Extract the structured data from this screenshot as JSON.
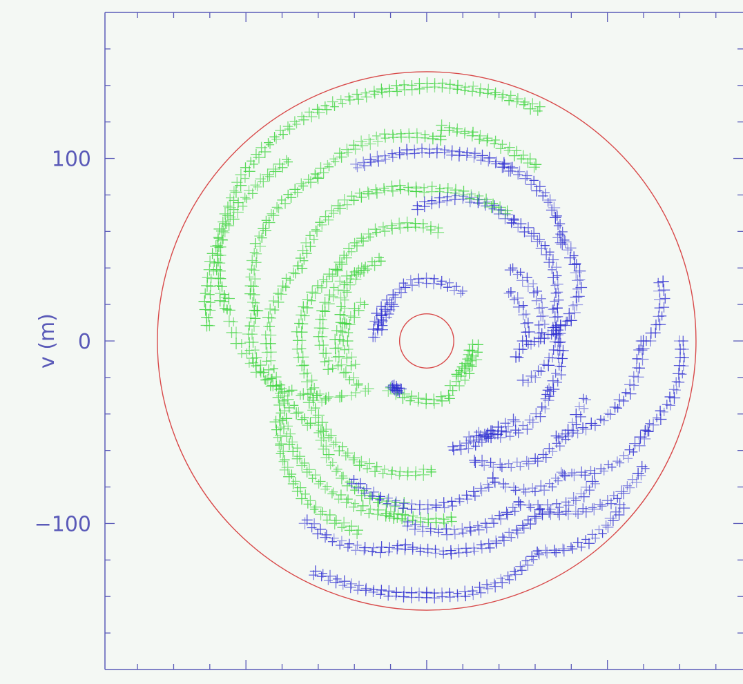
{
  "chart_data": {
    "type": "scatter",
    "title": "",
    "xlabel": "",
    "ylabel": "v (m)",
    "xlim": [
      -178,
      175
    ],
    "ylim": [
      -180,
      180
    ],
    "yticks_labeled": [
      {
        "value": 100,
        "label": "100"
      },
      {
        "value": 0,
        "label": "0"
      },
      {
        "value": -100,
        "label": "−100"
      }
    ],
    "grid": false,
    "legend": "none",
    "marker": "+",
    "colors": {
      "axis": "#5a5ab8",
      "background": "#f4f8f4",
      "circles": "#d84848",
      "series_green": "#3fd43f",
      "series_blue": "#2a2ad0"
    },
    "circles": [
      {
        "center": [
          0,
          0
        ],
        "radius": 149
      },
      {
        "center": [
          0,
          0
        ],
        "radius": 15
      }
    ],
    "arc_tracks": [
      {
        "series": "green",
        "r0": 140,
        "a0": 64,
        "r1": 138,
        "a1": 102,
        "bend": 0
      },
      {
        "series": "green",
        "r0": 138,
        "a0": 104,
        "r1": 112,
        "a1": 171,
        "bend": 10
      },
      {
        "series": "green",
        "r0": 112,
        "a0": 168,
        "r1": 42,
        "a1": 219,
        "bend": 12
      },
      {
        "series": "green",
        "r0": 124,
        "a0": 128,
        "r1": 120,
        "a1": 176,
        "bend": 4
      },
      {
        "series": "green",
        "r0": 112,
        "a0": 58,
        "r1": 116,
        "a1": 86,
        "bend": 0
      },
      {
        "series": "green",
        "r0": 110,
        "a0": 86,
        "r1": 108,
        "a1": 124,
        "bend": 4
      },
      {
        "series": "green",
        "r0": 108,
        "a0": 124,
        "r1": 95,
        "a1": 170,
        "bend": 6
      },
      {
        "series": "green",
        "r0": 95,
        "a0": 170,
        "r1": 88,
        "a1": 196,
        "bend": 4
      },
      {
        "series": "green",
        "r0": 82,
        "a0": 58,
        "r1": 82,
        "a1": 94,
        "bend": 0
      },
      {
        "series": "green",
        "r0": 82,
        "a0": 94,
        "r1": 80,
        "a1": 150,
        "bend": 6
      },
      {
        "series": "green",
        "r0": 80,
        "a0": 150,
        "r1": 78,
        "a1": 215,
        "bend": 8
      },
      {
        "series": "green",
        "r0": 60,
        "a0": 84,
        "r1": 62,
        "a1": 142,
        "bend": 4
      },
      {
        "series": "green",
        "r0": 62,
        "a0": 142,
        "r1": 65,
        "a1": 210,
        "bend": 6
      },
      {
        "series": "green",
        "r0": 50,
        "a0": 120,
        "r1": 46,
        "a1": 168,
        "bend": 4
      },
      {
        "series": "green",
        "r0": 46,
        "a0": 168,
        "r1": 44,
        "a1": 212,
        "bend": 4
      },
      {
        "series": "green",
        "r0": 52,
        "a0": 132,
        "r1": 54,
        "a1": 196,
        "bend": 5
      },
      {
        "series": "green",
        "r0": 40,
        "a0": 150,
        "r1": 42,
        "a1": 198,
        "bend": 3
      },
      {
        "series": "green",
        "r0": 70,
        "a0": 204,
        "r1": 70,
        "a1": 272,
        "bend": 5
      },
      {
        "series": "green",
        "r0": 84,
        "a0": 198,
        "r1": 96,
        "a1": 262,
        "bend": 6
      },
      {
        "series": "green",
        "r0": 96,
        "a0": 258,
        "r1": 98,
        "a1": 278,
        "bend": 0
      },
      {
        "series": "green",
        "r0": 92,
        "a0": 208,
        "r1": 110,
        "a1": 250,
        "bend": 6
      },
      {
        "series": "green",
        "r0": 76,
        "a0": 220,
        "r1": 90,
        "a1": 262,
        "bend": 5
      },
      {
        "series": "green",
        "r0": 32,
        "a0": 232,
        "r1": 32,
        "a1": 292,
        "bend": 0
      },
      {
        "series": "green",
        "r0": 28,
        "a0": 298,
        "r1": 26,
        "a1": 356,
        "bend": 0
      },
      {
        "series": "green",
        "r0": 24,
        "a0": 312,
        "r1": 24,
        "a1": 348,
        "bend": 0
      },
      {
        "series": "blue",
        "r0": 102,
        "a0": 112,
        "r1": 104,
        "a1": 64,
        "bend": 0
      },
      {
        "series": "blue",
        "r0": 104,
        "a0": 66,
        "r1": 92,
        "a1": 36,
        "bend": 4
      },
      {
        "series": "blue",
        "r0": 92,
        "a0": 38,
        "r1": 78,
        "a1": 8,
        "bend": 5
      },
      {
        "series": "blue",
        "r0": 78,
        "a0": 8,
        "r1": 56,
        "a1": -2,
        "bend": 0
      },
      {
        "series": "blue",
        "r0": 72,
        "a0": 94,
        "r1": 80,
        "a1": 54,
        "bend": 4
      },
      {
        "series": "blue",
        "r0": 80,
        "a0": 54,
        "r1": 72,
        "a1": 14,
        "bend": 5
      },
      {
        "series": "blue",
        "r0": 72,
        "a0": 14,
        "r1": 58,
        "a1": -22,
        "bend": 5
      },
      {
        "series": "blue",
        "r0": 60,
        "a0": 40,
        "r1": 62,
        "a1": 4,
        "bend": 4
      },
      {
        "series": "blue",
        "r0": 52,
        "a0": 30,
        "r1": 50,
        "a1": -10,
        "bend": 4
      },
      {
        "series": "blue",
        "r0": 32,
        "a0": 112,
        "r1": 32,
        "a1": 54,
        "bend": 0
      },
      {
        "series": "blue",
        "r0": 30,
        "a0": 118,
        "r1": 28,
        "a1": 176,
        "bend": 0
      },
      {
        "series": "blue",
        "r0": 26,
        "a0": 134,
        "r1": 26,
        "a1": 166,
        "bend": 0
      },
      {
        "series": "blue",
        "r0": 58,
        "a0": -60,
        "r1": 72,
        "a1": -22,
        "bend": 6
      },
      {
        "series": "blue",
        "r0": 72,
        "a0": -24,
        "r1": 70,
        "a1": 6,
        "bend": 3
      },
      {
        "series": "blue",
        "r0": 70,
        "a0": -68,
        "r1": 92,
        "a1": -20,
        "bend": 8
      },
      {
        "series": "blue",
        "r0": 88,
        "a0": -36,
        "r1": 118,
        "a1": 0,
        "bend": 8
      },
      {
        "series": "blue",
        "r0": 118,
        "a0": -2,
        "r1": 132,
        "a1": 14,
        "bend": 4
      },
      {
        "series": "blue",
        "r0": 86,
        "a0": -118,
        "r1": 84,
        "a1": -64,
        "bend": 5
      },
      {
        "series": "blue",
        "r0": 84,
        "a0": -64,
        "r1": 104,
        "a1": -44,
        "bend": 6
      },
      {
        "series": "blue",
        "r0": 104,
        "a0": -44,
        "r1": 130,
        "a1": -22,
        "bend": 6
      },
      {
        "series": "blue",
        "r0": 130,
        "a0": -22,
        "r1": 140,
        "a1": 0,
        "bend": 4
      },
      {
        "series": "blue",
        "r0": 118,
        "a0": -124,
        "r1": 112,
        "a1": -96,
        "bend": 4
      },
      {
        "series": "blue",
        "r0": 112,
        "a0": -96,
        "r1": 112,
        "a1": -56,
        "bend": 4
      },
      {
        "series": "blue",
        "r0": 112,
        "a0": -56,
        "r1": 138,
        "a1": -30,
        "bend": 6
      },
      {
        "series": "blue",
        "r0": 100,
        "a0": -96,
        "r1": 102,
        "a1": -60,
        "bend": 4
      },
      {
        "series": "blue",
        "r0": 102,
        "a0": -60,
        "r1": 120,
        "a1": -40,
        "bend": 5
      },
      {
        "series": "blue",
        "r0": 140,
        "a0": -116,
        "r1": 138,
        "a1": -90,
        "bend": 0
      },
      {
        "series": "blue",
        "r0": 138,
        "a0": -90,
        "r1": 130,
        "a1": -62,
        "bend": 4
      },
      {
        "series": "blue",
        "r0": 130,
        "a0": -62,
        "r1": 140,
        "a1": -40,
        "bend": 5
      },
      {
        "series": "blue",
        "r0": 60,
        "a0": -76,
        "r1": 62,
        "a1": -50,
        "bend": 0
      },
      {
        "series": "blue",
        "r0": 58,
        "a0": -66,
        "r1": 64,
        "a1": -42,
        "bend": 0
      },
      {
        "series": "blue",
        "r0": 30,
        "a0": 242,
        "r1": 30,
        "a1": 232,
        "bend": 0
      }
    ]
  }
}
